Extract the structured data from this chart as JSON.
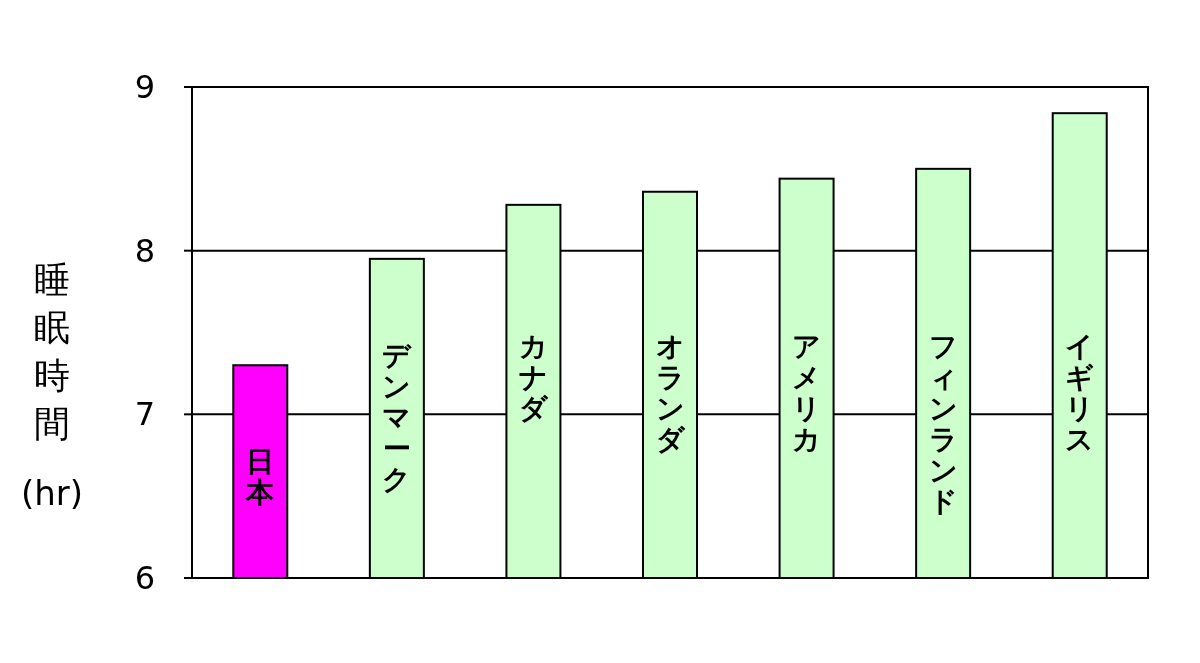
{
  "chart_data": {
    "type": "bar",
    "ylabel": "睡眠時間(hr)",
    "categories": [
      "日本",
      "デンマーク",
      "カナダ",
      "オランダ",
      "アメリカ",
      "フィンランド",
      "イギリス"
    ],
    "values": [
      7.3,
      7.95,
      8.28,
      8.36,
      8.44,
      8.5,
      8.84
    ],
    "colors": [
      "#ff00ff",
      "#ccffcc",
      "#ccffcc",
      "#ccffcc",
      "#ccffcc",
      "#ccffcc",
      "#ccffcc"
    ],
    "ylim": [
      6,
      9
    ],
    "yticks": [
      6,
      7,
      8,
      9
    ],
    "grid": "y"
  }
}
